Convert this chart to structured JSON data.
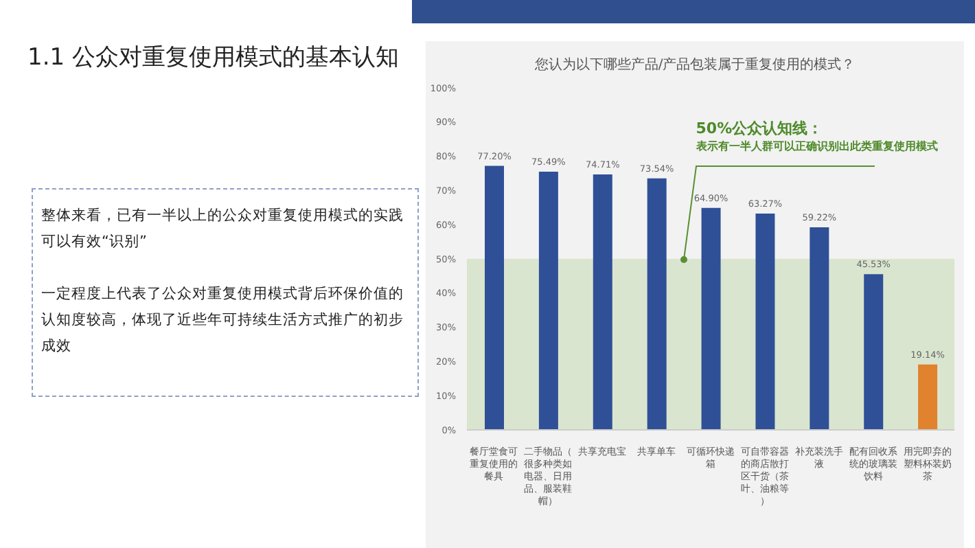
{
  "chart_data": {
    "type": "bar",
    "title": "您认为以下哪些产品/产品包装属于重复使用的模式？",
    "categories": [
      "餐厅堂食可重复使用的餐具",
      "二手物品（很多种类如电器、日用品、服装鞋帽）",
      "共享充电宝",
      "共享单车",
      "可循环快递箱",
      "可自带容器的商店散打区干货（茶叶、油粮等）",
      "补充装洗手液",
      "配有回收系统的玻璃装饮料",
      "用完即弃的塑料杯装奶茶"
    ],
    "values": [
      77.2,
      75.49,
      74.71,
      73.54,
      64.9,
      63.27,
      59.22,
      45.53,
      19.14
    ],
    "colors": [
      "#2f5097",
      "#2f5097",
      "#2f5097",
      "#2f5097",
      "#2f5097",
      "#2f5097",
      "#2f5097",
      "#2f5097",
      "#e0822e"
    ],
    "value_labels": [
      "77.20%",
      "75.49%",
      "74.71%",
      "73.54%",
      "64.90%",
      "63.27%",
      "59.22%",
      "45.53%",
      "19.14%"
    ],
    "ylim": [
      0,
      100
    ],
    "yticks": [
      {
        "value": 0,
        "label": "0%"
      },
      {
        "value": 10,
        "label": "10%"
      },
      {
        "value": 20,
        "label": "20%"
      },
      {
        "value": 30,
        "label": "30%"
      },
      {
        "value": 40,
        "label": "40%"
      },
      {
        "value": 50,
        "label": "50%"
      },
      {
        "value": 60,
        "label": "60%"
      },
      {
        "value": 70,
        "label": "70%"
      },
      {
        "value": 80,
        "label": "80%"
      },
      {
        "value": 90,
        "label": "90%"
      },
      {
        "value": 100,
        "label": "100%"
      }
    ],
    "bands": [
      {
        "axis": "y",
        "from": 0,
        "to": 50,
        "color": "#c9dcb8"
      }
    ],
    "annotations": [
      "1.1 公众对重复使用模式的基本认知",
      "整体来看，已有一半以上的公众对重复使用模式的实践可以有效“识别”",
      "一定程度上代表了公众对重复使用模式背后环保价值的认知度较高，体现了近些年可持续生活方式推广的初步成效",
      "50%公众认知线：",
      "表示有一半人群可以正确识别出此类重复使用模式"
    ],
    "grid": false,
    "legend": false
  }
}
